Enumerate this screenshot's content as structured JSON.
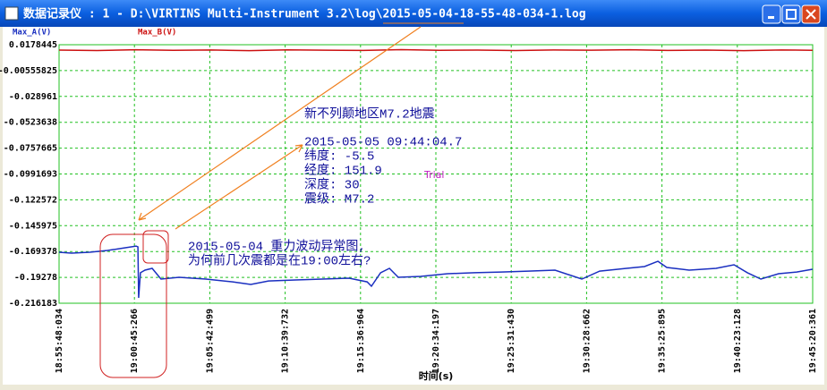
{
  "window": {
    "title": "数据记录仪 : 1 - D:\\VIRTINS Multi-Instrument 3.2\\log\\2015-05-04-18-55-48-034-1.log"
  },
  "chart_data": {
    "type": "line",
    "xlabel": "时间(s)",
    "xlim": [
      0,
      2972.327
    ],
    "xticks": [
      {
        "value": 0,
        "label": "18:55:48:034"
      },
      {
        "value": 297.233,
        "label": "19:00:45:266"
      },
      {
        "value": 594.465,
        "label": "19:05:42:499"
      },
      {
        "value": 891.698,
        "label": "19:10:39:732"
      },
      {
        "value": 1188.931,
        "label": "19:15:36:964"
      },
      {
        "value": 1486.164,
        "label": "19:20:34:197"
      },
      {
        "value": 1783.396,
        "label": "19:25:31:430"
      },
      {
        "value": 2080.629,
        "label": "19:30:28:662"
      },
      {
        "value": 2377.862,
        "label": "19:35:25:895"
      },
      {
        "value": 2675.094,
        "label": "19:40:23:128"
      },
      {
        "value": 2972.327,
        "label": "19:45:20:361"
      }
    ],
    "ylim": [
      -0.216183,
      0.0178445
    ],
    "yticks": [
      0.0178445,
      -0.00555825,
      -0.028961,
      -0.0523638,
      -0.0757665,
      -0.0991693,
      -0.122572,
      -0.145975,
      -0.169378,
      -0.19278,
      -0.216183
    ],
    "grid": true,
    "series": [
      {
        "name": "Max_A(V)",
        "color": "#1a2fc0",
        "x": [
          0,
          49,
          120,
          191,
          261,
          304,
          311,
          314,
          321,
          339,
          367,
          402,
          473,
          579,
          685,
          756,
          826,
          932,
          1038,
          1144,
          1215,
          1232,
          1268,
          1303,
          1338,
          1426,
          1532,
          1638,
          1744,
          1850,
          1956,
          2062,
          2132,
          2238,
          2309,
          2362,
          2397,
          2485,
          2591,
          2662,
          2715,
          2768,
          2838,
          2909,
          2972
        ],
        "values": [
          -0.17,
          -0.1708,
          -0.17,
          -0.1684,
          -0.166,
          -0.1644,
          -0.1652,
          -0.2113,
          -0.1886,
          -0.1862,
          -0.1846,
          -0.1943,
          -0.1927,
          -0.1943,
          -0.1968,
          -0.1992,
          -0.196,
          -0.1951,
          -0.1943,
          -0.1935,
          -0.1968,
          -0.2008,
          -0.1886,
          -0.1846,
          -0.1927,
          -0.1919,
          -0.1895,
          -0.1886,
          -0.1879,
          -0.1871,
          -0.1862,
          -0.1943,
          -0.1871,
          -0.1846,
          -0.183,
          -0.1782,
          -0.1838,
          -0.1862,
          -0.1846,
          -0.1814,
          -0.1886,
          -0.1943,
          -0.1895,
          -0.1879,
          -0.1854
        ]
      },
      {
        "name": "Max_B(V)",
        "color": "#cc1010",
        "x": [
          0,
          150,
          300,
          450,
          600,
          750,
          900,
          1050,
          1200,
          1350,
          1500,
          1650,
          1800,
          1950,
          2100,
          2250,
          2400,
          2550,
          2700,
          2850,
          2972
        ],
        "values": [
          0.013,
          0.0126,
          0.0133,
          0.0128,
          0.0131,
          0.0125,
          0.0132,
          0.0129,
          0.0127,
          0.0134,
          0.0128,
          0.013,
          0.0126,
          0.0131,
          0.0129,
          0.0133,
          0.0127,
          0.013,
          0.0125,
          0.0131,
          0.0128
        ]
      }
    ],
    "annotations": [
      "新不列颠地区M7.2地震",
      "2015-05-05 09:44:04.7",
      "纬度: -5.5",
      "经度: 151.9",
      "深度: 30",
      "震级: M7.2",
      "Trial",
      "2015-05-04 重力波动异常图,",
      "为何前几次震都是在19:00左右?"
    ]
  }
}
